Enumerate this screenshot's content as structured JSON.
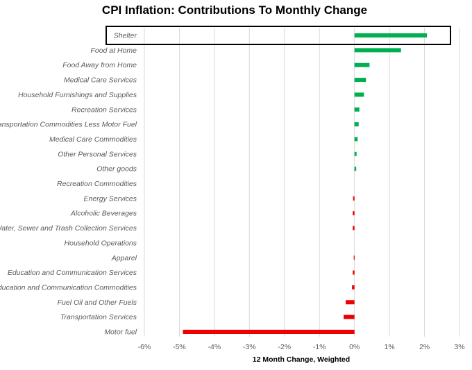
{
  "chart_data": {
    "type": "bar",
    "orientation": "horizontal",
    "title": "CPI Inflation: Contributions To Monthly Change",
    "xlabel": "12 Month Change, Weighted",
    "ylabel": "",
    "xlim": [
      -6,
      3
    ],
    "x_ticks": [
      -6,
      -5,
      -4,
      -3,
      -2,
      -1,
      0,
      1,
      2,
      3
    ],
    "x_tick_labels": [
      "-6%",
      "-5%",
      "-4%",
      "-3%",
      "-2%",
      "-1%",
      "0%",
      "1%",
      "2%",
      "3%"
    ],
    "grid": true,
    "highlighted_category": "Shelter",
    "categories": [
      "Shelter",
      "Food at Home",
      "Food Away from Home",
      "Medical Care Services",
      "Household Furnishings and Supplies",
      "Recreation Services",
      "Transportation Commodities Less Motor Fuel",
      "Medical Care Commodities",
      "Other Personal Services",
      "Other goods",
      "Recreation Commodities",
      "Energy Services",
      "Alcoholic Beverages",
      "Water, Sewer and Trash Collection Services",
      "Household Operations",
      "Apparel",
      "Education and Communication Services",
      "Education and Communication Commodities",
      "Fuel Oil and Other Fuels",
      "Transportation Services",
      "Motor fuel"
    ],
    "values": [
      2.07,
      1.33,
      0.43,
      0.33,
      0.27,
      0.14,
      0.12,
      0.09,
      0.06,
      0.05,
      0.0,
      -0.04,
      -0.05,
      -0.05,
      0.0,
      -0.02,
      -0.05,
      -0.07,
      -0.25,
      -0.31,
      -4.9
    ],
    "colors": {
      "positive": "#00b050",
      "negative": "#ee0000",
      "grid": "#d9d9d9",
      "highlight_box": "#000000"
    }
  }
}
